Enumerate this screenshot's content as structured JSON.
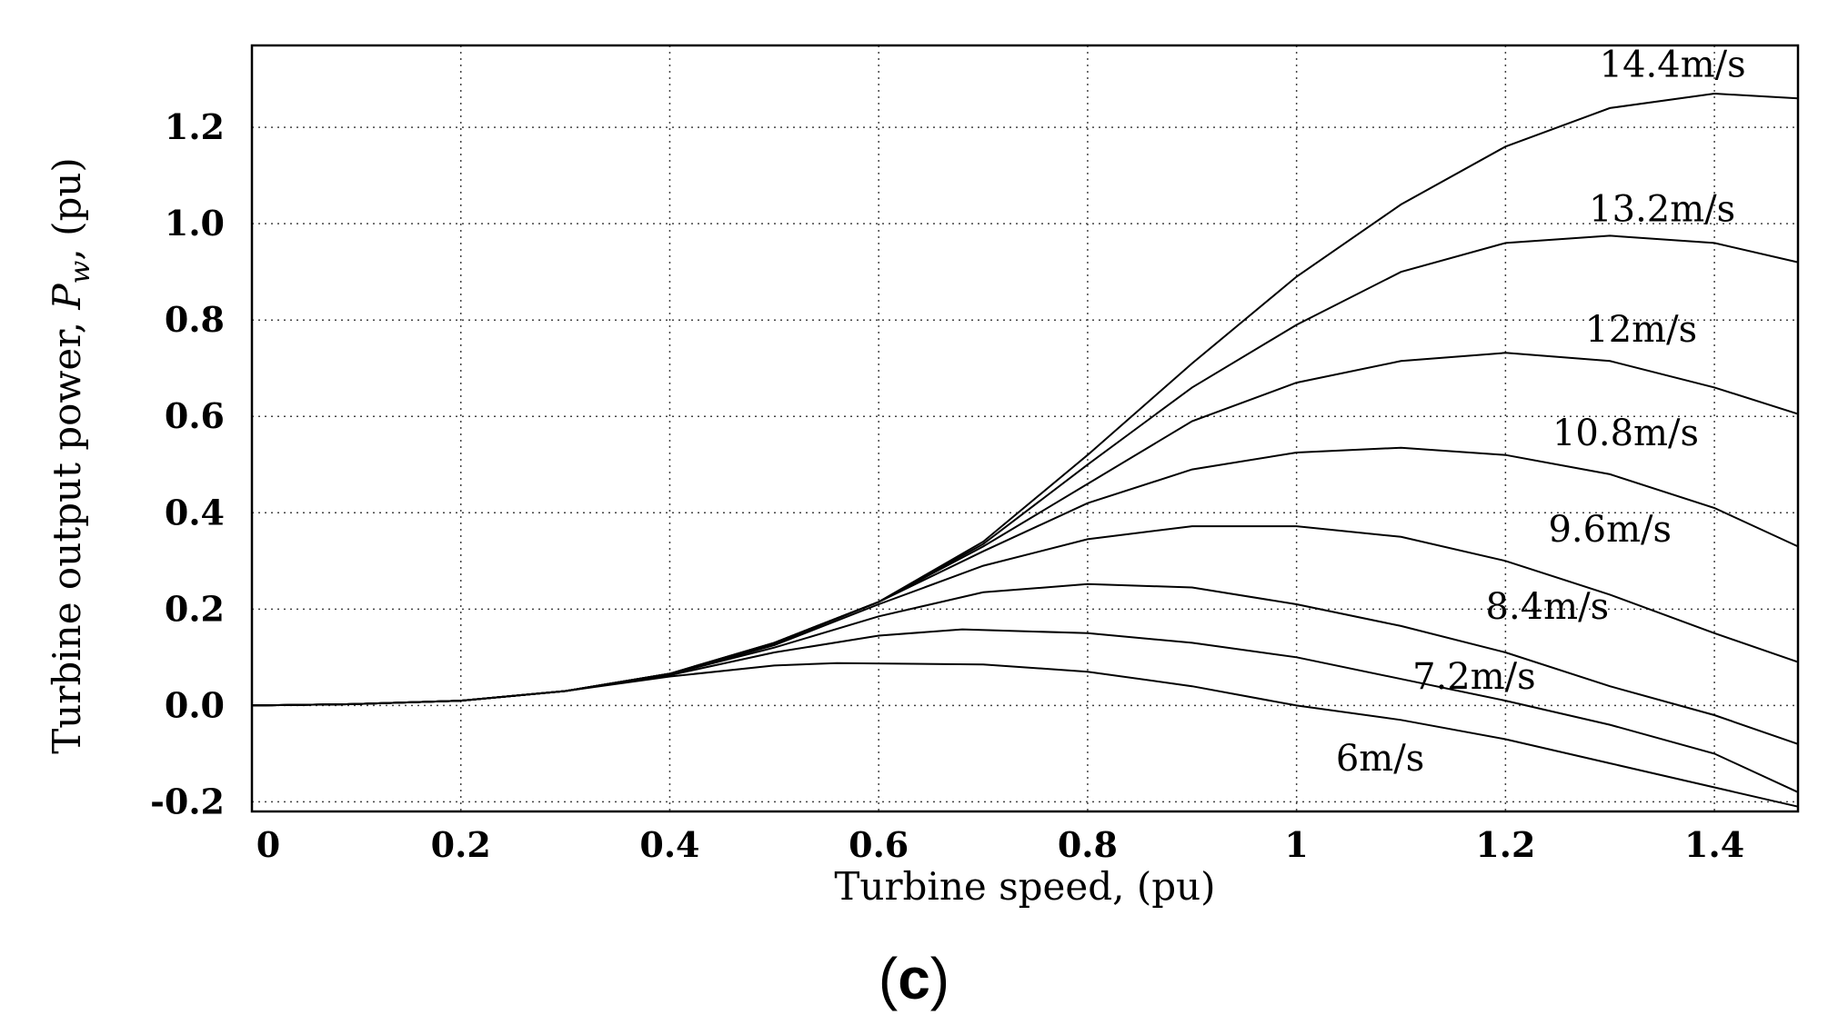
{
  "chart_data": {
    "type": "line",
    "xlabel": "Turbine speed, (pu)",
    "ylabel_parts": [
      "Turbine output power, ",
      "P",
      "w",
      ", (pu)"
    ],
    "xlim": [
      0,
      1.48
    ],
    "ylim": [
      -0.22,
      1.37
    ],
    "x_ticks": [
      0,
      0.2,
      0.4,
      0.6,
      0.8,
      1,
      1.2,
      1.4
    ],
    "x_tick_labels": [
      "0",
      "0.2",
      "0.4",
      "0.6",
      "0.8",
      "1",
      "1.2",
      "1.4"
    ],
    "y_ticks": [
      -0.2,
      0,
      0.2,
      0.4,
      0.6,
      0.8,
      1.0,
      1.2
    ],
    "y_tick_labels": [
      "-0.2",
      "0.0",
      "0.2",
      "0.4",
      "0.6",
      "0.8",
      "1.0",
      "1.2"
    ],
    "grid": true,
    "series": [
      {
        "name": "6m/s",
        "x": [
          0,
          0.1,
          0.2,
          0.3,
          0.4,
          0.5,
          0.56,
          0.7,
          0.8,
          0.9,
          1.0,
          1.1,
          1.2,
          1.3,
          1.4,
          1.48
        ],
        "y": [
          0,
          0.003,
          0.01,
          0.03,
          0.06,
          0.083,
          0.088,
          0.085,
          0.07,
          0.04,
          0.0,
          -0.03,
          -0.07,
          -0.12,
          -0.17,
          -0.21
        ]
      },
      {
        "name": "7.2m/s",
        "x": [
          0,
          0.1,
          0.2,
          0.3,
          0.4,
          0.5,
          0.6,
          0.68,
          0.8,
          0.9,
          1.0,
          1.1,
          1.2,
          1.3,
          1.4,
          1.48
        ],
        "y": [
          0,
          0.003,
          0.01,
          0.03,
          0.063,
          0.11,
          0.145,
          0.158,
          0.15,
          0.13,
          0.1,
          0.055,
          0.01,
          -0.04,
          -0.1,
          -0.18
        ]
      },
      {
        "name": "8.4m/s",
        "x": [
          0,
          0.1,
          0.2,
          0.3,
          0.4,
          0.5,
          0.6,
          0.7,
          0.8,
          0.9,
          1.0,
          1.1,
          1.2,
          1.3,
          1.4,
          1.48
        ],
        "y": [
          0,
          0.003,
          0.01,
          0.03,
          0.065,
          0.12,
          0.185,
          0.235,
          0.252,
          0.245,
          0.21,
          0.165,
          0.11,
          0.04,
          -0.02,
          -0.08
        ]
      },
      {
        "name": "9.6m/s",
        "x": [
          0,
          0.1,
          0.2,
          0.3,
          0.4,
          0.5,
          0.6,
          0.7,
          0.8,
          0.9,
          1.0,
          1.1,
          1.2,
          1.3,
          1.4,
          1.48
        ],
        "y": [
          0,
          0.003,
          0.01,
          0.03,
          0.065,
          0.125,
          0.21,
          0.29,
          0.345,
          0.372,
          0.372,
          0.35,
          0.3,
          0.23,
          0.15,
          0.09
        ]
      },
      {
        "name": "10.8m/s",
        "x": [
          0,
          0.1,
          0.2,
          0.3,
          0.4,
          0.5,
          0.6,
          0.7,
          0.8,
          0.9,
          1.0,
          1.1,
          1.2,
          1.3,
          1.4,
          1.48
        ],
        "y": [
          0,
          0.003,
          0.01,
          0.03,
          0.066,
          0.128,
          0.215,
          0.32,
          0.42,
          0.49,
          0.525,
          0.535,
          0.52,
          0.48,
          0.41,
          0.33
        ]
      },
      {
        "name": "12m/s",
        "x": [
          0,
          0.1,
          0.2,
          0.3,
          0.4,
          0.5,
          0.6,
          0.7,
          0.8,
          0.9,
          1.0,
          1.1,
          1.2,
          1.3,
          1.4,
          1.48
        ],
        "y": [
          0,
          0.003,
          0.01,
          0.03,
          0.066,
          0.13,
          0.215,
          0.33,
          0.46,
          0.59,
          0.67,
          0.715,
          0.732,
          0.715,
          0.66,
          0.605
        ]
      },
      {
        "name": "13.2m/s",
        "x": [
          0,
          0.1,
          0.2,
          0.3,
          0.4,
          0.5,
          0.6,
          0.7,
          0.8,
          0.9,
          1.0,
          1.1,
          1.2,
          1.3,
          1.4,
          1.48
        ],
        "y": [
          0,
          0.003,
          0.01,
          0.03,
          0.066,
          0.13,
          0.215,
          0.335,
          0.5,
          0.66,
          0.79,
          0.9,
          0.96,
          0.975,
          0.96,
          0.92
        ]
      },
      {
        "name": "14.4m/s",
        "x": [
          0,
          0.1,
          0.2,
          0.3,
          0.4,
          0.5,
          0.6,
          0.7,
          0.8,
          0.9,
          1.0,
          1.1,
          1.2,
          1.3,
          1.4,
          1.48
        ],
        "y": [
          0,
          0.003,
          0.01,
          0.03,
          0.066,
          0.13,
          0.215,
          0.34,
          0.52,
          0.71,
          0.89,
          1.04,
          1.16,
          1.24,
          1.27,
          1.26
        ]
      }
    ],
    "curve_labels": [
      {
        "text": "14.4m/s",
        "x": 1.36,
        "y": 1.305
      },
      {
        "text": "13.2m/s",
        "x": 1.35,
        "y": 1.005
      },
      {
        "text": "12m/s",
        "x": 1.33,
        "y": 0.755
      },
      {
        "text": "10.8m/s",
        "x": 1.315,
        "y": 0.54
      },
      {
        "text": "9.6m/s",
        "x": 1.3,
        "y": 0.34
      },
      {
        "text": "8.4m/s",
        "x": 1.24,
        "y": 0.18
      },
      {
        "text": "7.2m/s",
        "x": 1.17,
        "y": 0.035
      },
      {
        "text": "6m/s",
        "x": 1.08,
        "y": -0.135
      }
    ]
  },
  "panel": {
    "open": "(",
    "letter": "c",
    "close": ")"
  }
}
